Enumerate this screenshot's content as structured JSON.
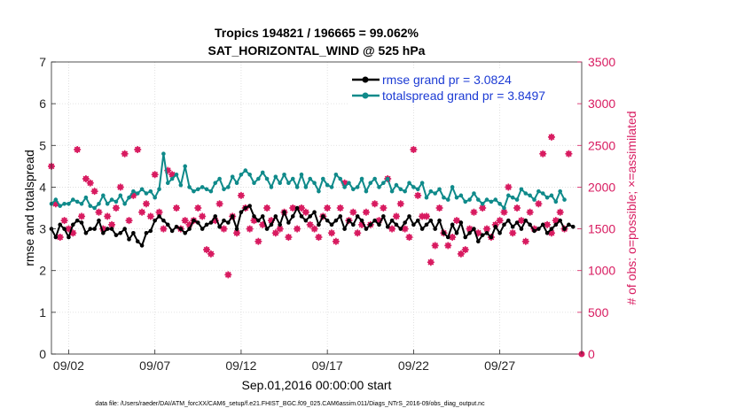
{
  "chart_data": {
    "type": "line",
    "title": "Tropics 194821 / 196665 = 99.062%",
    "subtitle": "SAT_HORIZONTAL_WIND @ 525 hPa",
    "xlabel": "Sep.01,2016 00:00:00 start",
    "ylabel_left": "rmse and totalspread",
    "ylabel_right": "# of obs: o=possible; ×=assimilated",
    "xlim": [
      0,
      30.75
    ],
    "ylim_left": [
      0,
      7
    ],
    "ylim_right": [
      0,
      3500
    ],
    "grid": true,
    "legend_position": "top-right",
    "xticks": [
      {
        "x": 1,
        "label": "09/02"
      },
      {
        "x": 6,
        "label": "09/07"
      },
      {
        "x": 11,
        "label": "09/12"
      },
      {
        "x": 16,
        "label": "09/17"
      },
      {
        "x": 21,
        "label": "09/22"
      },
      {
        "x": 26,
        "label": "09/27"
      }
    ],
    "yticks_left": [
      "0",
      "1",
      "2",
      "3",
      "4",
      "5",
      "6",
      "7"
    ],
    "yticks_right": [
      "0",
      "500",
      "1000",
      "1500",
      "2000",
      "2500",
      "3000",
      "3500"
    ],
    "colors": {
      "rmse": "#000000",
      "spread": "#0f8a8a",
      "obs": "#d81b60",
      "legend_text": "#1c3bd4"
    },
    "series": [
      {
        "name": "rmse grand pr = 3.0824",
        "axis": "left",
        "x_start": 0,
        "x_step": 0.25,
        "values": [
          3.0,
          2.8,
          3.1,
          3.0,
          2.8,
          3.1,
          3.2,
          3.15,
          2.9,
          3.0,
          3.0,
          3.2,
          2.9,
          3.0,
          3.0,
          2.85,
          2.9,
          3.0,
          2.75,
          2.9,
          2.7,
          2.6,
          2.9,
          2.95,
          3.2,
          3.3,
          3.2,
          3.1,
          2.95,
          3.05,
          3.0,
          2.9,
          3.0,
          3.2,
          3.15,
          3.0,
          3.1,
          3.15,
          3.3,
          3.05,
          3.2,
          3.15,
          3.3,
          3.0,
          3.4,
          3.5,
          3.55,
          3.3,
          3.2,
          3.3,
          3.0,
          3.1,
          3.3,
          3.1,
          3.4,
          3.15,
          3.3,
          3.5,
          3.3,
          3.2,
          3.3,
          3.4,
          3.1,
          3.3,
          3.2,
          3.1,
          3.2,
          3.3,
          3.0,
          3.2,
          3.1,
          3.3,
          3.2,
          3.0,
          3.1,
          3.2,
          3.1,
          3.3,
          3.05,
          3.2,
          3.1,
          3.0,
          3.15,
          3.3,
          3.1,
          3.2,
          3.0,
          3.1,
          3.2,
          3.0,
          3.2,
          2.9,
          2.8,
          3.1,
          2.9,
          3.15,
          2.8,
          2.9,
          3.0,
          2.7,
          2.85,
          2.9,
          2.8,
          3.05,
          2.9,
          3.1,
          3.2,
          3.05,
          3.15,
          3.0,
          3.2,
          3.1,
          2.95,
          3.0,
          3.1,
          2.9,
          3.0,
          3.1,
          3.2,
          3.0,
          3.1,
          3.05
        ]
      },
      {
        "name": "totalspread grand pr = 3.8497",
        "axis": "left",
        "x_start": 0,
        "x_step": 0.25,
        "values": [
          3.6,
          3.7,
          3.55,
          3.6,
          3.6,
          3.7,
          3.65,
          3.6,
          3.75,
          3.55,
          3.5,
          3.6,
          3.8,
          3.6,
          3.7,
          3.65,
          3.8,
          3.6,
          3.75,
          3.9,
          3.85,
          3.95,
          3.85,
          3.9,
          3.75,
          3.95,
          4.8,
          4.1,
          4.2,
          4.3,
          4.05,
          4.5,
          4.0,
          3.9,
          3.95,
          4.0,
          3.95,
          3.9,
          4.1,
          4.2,
          3.95,
          4.0,
          4.25,
          4.1,
          4.3,
          4.4,
          4.3,
          4.1,
          4.2,
          4.35,
          4.2,
          4.0,
          4.25,
          4.1,
          4.3,
          4.1,
          4.2,
          4.0,
          4.3,
          4.0,
          4.2,
          4.1,
          3.9,
          4.2,
          4.05,
          4.0,
          4.3,
          4.2,
          4.0,
          4.1,
          3.95,
          4.0,
          4.2,
          3.9,
          4.1,
          4.2,
          4.0,
          4.1,
          4.2,
          3.9,
          4.05,
          3.95,
          3.9,
          4.1,
          4.0,
          3.95,
          4.1,
          3.75,
          3.9,
          3.85,
          3.95,
          3.75,
          3.7,
          4.0,
          3.75,
          3.8,
          3.65,
          3.7,
          3.85,
          3.7,
          3.6,
          3.7,
          3.65,
          3.7,
          3.6,
          3.5,
          3.8,
          3.75,
          3.7,
          3.95,
          3.85,
          3.8,
          3.7,
          3.9,
          3.85,
          3.75,
          3.8,
          3.65,
          3.9,
          3.7
        ]
      }
    ],
    "obs_series": {
      "name": "obs count",
      "axis": "right",
      "x_start": 0,
      "x_step": 0.25,
      "values": [
        2250,
        1800,
        1400,
        1600,
        1500,
        1450,
        2450,
        1650,
        2100,
        2050,
        1950,
        1700,
        1500,
        1650,
        1550,
        1750,
        2000,
        2400,
        1600,
        1900,
        2450,
        1700,
        1800,
        1650,
        2150,
        1700,
        1500,
        2200,
        2150,
        1750,
        1500,
        1600,
        1550,
        1600,
        1750,
        1650,
        1250,
        1200,
        1600,
        1800,
        1500,
        950,
        1650,
        1450,
        1900,
        1750,
        1500,
        1600,
        1350,
        1550,
        1750,
        1600,
        1450,
        1500,
        1700,
        1400,
        1750,
        1500,
        1750,
        1700,
        1550,
        1500,
        1400,
        1650,
        1750,
        1450,
        1350,
        1750,
        2050,
        1600,
        1700,
        1450,
        1550,
        1700,
        1550,
        1800,
        1600,
        1750,
        2100,
        1500,
        1650,
        1800,
        1500,
        1400,
        2450,
        1900,
        1650,
        1650,
        1100,
        1300,
        1750,
        1450,
        1300,
        1400,
        1600,
        1200,
        1250,
        1500,
        1700,
        1450,
        1750,
        1500,
        1400,
        1550,
        1600,
        1700,
        2000,
        1450,
        1750,
        1600,
        1350,
        1700,
        1500,
        1800,
        2400,
        1550,
        1450,
        1600,
        1700,
        1500
      ]
    },
    "obs_possible_final": {
      "x": 30.75,
      "value": 0
    },
    "obs_special": [
      {
        "x": 29.0,
        "value": 2600
      },
      {
        "x": 30.0,
        "value": 2400
      }
    ]
  },
  "footer": "data file: /Users/raeder/DAI/ATM_forcXX/CAM6_setup/f.e21.FHIST_BGC.f09_025.CAM6assim.011/Diags_NTrS_2016-09/obs_diag_output.nc"
}
